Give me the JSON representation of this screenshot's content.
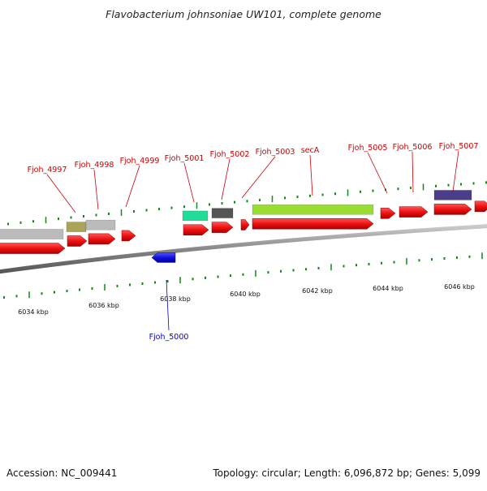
{
  "title": "Flavobacterium johnsoniae UW101, complete genome",
  "footer": {
    "accession": "Accession: NC_009441",
    "summary": "Topology: circular; Length: 6,096,872 bp; Genes: 5,099"
  },
  "colors": {
    "gene_forward": "#ee1111",
    "gene_reverse": "#1111dd",
    "backbone": "#888888",
    "label_forward": "#cc0000",
    "label_reverse": "#0000cc",
    "tick": "#118811"
  },
  "scale_labels": [
    "6034 kbp",
    "6036 kbp",
    "6038 kbp",
    "6040 kbp",
    "6042 kbp",
    "6044 kbp",
    "6046 kbp"
  ],
  "gene_labels_forward": [
    "Fjoh_4997",
    "Fjoh_4998",
    "Fjoh_4999",
    "Fjoh_5001",
    "Fjoh_5002",
    "Fjoh_5003",
    "secA",
    "Fjoh_5005",
    "Fjoh_5006",
    "Fjoh_5007"
  ],
  "gene_labels_reverse": [
    "Fjoh_5000"
  ],
  "feature_colors": [
    "#bbbbbb",
    "#aaa35a",
    "#bbbbbb",
    "#22dd99",
    "#555555",
    "#99dd33",
    "#4a3d8a"
  ]
}
